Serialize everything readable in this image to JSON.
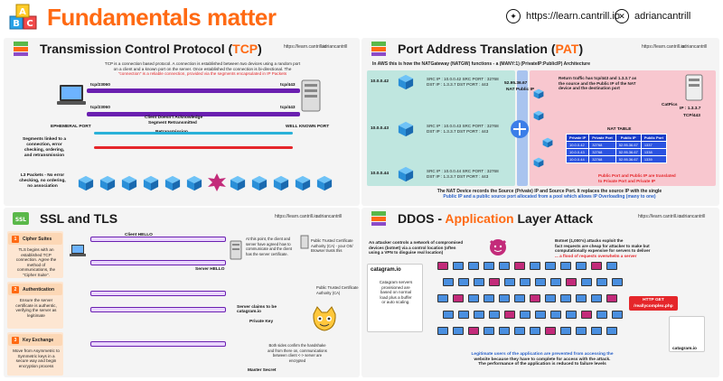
{
  "header": {
    "title": "Fundamentals matter",
    "website": "https://learn.cantrill.io",
    "handle": "adriancantrill",
    "abc": [
      "A",
      "B",
      "C"
    ]
  },
  "tcp": {
    "title_pre": "Transmission Control Protocol (",
    "title_acr": "TCP",
    "title_post": ")",
    "site": "https://learn.cantrill.io",
    "handle": "adriancantrill",
    "desc1": "TCP is a connection based protocol. A connection is established between two devices using a random port",
    "desc2": "on a client and a known port on the server. Once established the connection is bi-directional. The",
    "desc3": "\"connection\" is a reliable connection, provided via the segments encapsulated in IP Packets",
    "port_tcp23060_top": "tcp/23060",
    "port_tcp443_top": "tcp/443",
    "port_tcp23060_bot": "tcp/23060",
    "port_tcp443_bot": "tcp/443",
    "ephemeral": "EPHEMERAL PORT",
    "wellknown": "WELL KNOWN PORT",
    "ack1": "Client Doesn't Acknowledge",
    "ack2": "Segment Retransmitted",
    "retrans": "Retransmission",
    "seg1": "Segments linked to a",
    "seg2": "connection, error",
    "seg3": "checking, ordering,",
    "seg4": "and retransmission",
    "l3_1": "L3 Packets - No error",
    "l3_2": "checking, no ordering,",
    "l3_3": "no association"
  },
  "pat": {
    "title_pre": "Port Address Translation (",
    "title_acr": "PAT",
    "title_post": ")",
    "site": "https://learn.cantrill.io",
    "handle": "adriancantrill",
    "subtitle": "In AWS this is how the NATGateway (NATGW) functions - a (MANY:1) (PrivateIP:PublicIP) Architecture",
    "ip42": "10.0.0.42",
    "ip43": "10.0.0.43",
    "ip44": "10.0.0.44",
    "natip": "52.95.36.67",
    "natlabel": "NAT Public IP",
    "src1": "SRC IP : 10.0.0.42 SRC PORT : 32768",
    "dst1": "DST IP : 1.3.3.7 DST PORT : 443",
    "src2": "SRC IP : 10.0.0.43 SRC PORT : 32768",
    "dst2": "DST IP : 1.3.3.7 DST PORT : 443",
    "src3": "SRC IP : 10.0.0.44 SRC PORT : 32768",
    "dst3": "DST IP : 1.3.3.7 DST PORT : 443",
    "ret1": "Return traffic has tcp/443 and 1.3.3.7 as",
    "ret2": "the source and the Public IP of the NAT",
    "ret3": "device and the destination port",
    "catpics": "CatPics",
    "catip": "IP : 1.3.3.7",
    "catport": "TCP/443",
    "nat_table_title": "NAT TABLE",
    "nat_cols": [
      "Private IP",
      "Private Port",
      "Public IP",
      "Public Port"
    ],
    "nat_rows": [
      [
        "10.0.0.42",
        "32768",
        "52.95.36.67",
        "1337"
      ],
      [
        "10.0.0.43",
        "32768",
        "52.95.36.67",
        "1338"
      ],
      [
        "10.0.0.44",
        "32768",
        "52.95.36.67",
        "1339"
      ]
    ],
    "pp1": "Public Port and Public IP are translated",
    "pp2": "to Private Port and Private IP",
    "foot1": "The NAT Device records the Source (Private) IP and Source Port. It replaces the source IP with the single",
    "foot2": "Public IP and a public source port allocated from a pool which allows IP Overloading (many to one)"
  },
  "ssl": {
    "title": "SSL and TLS",
    "site": "https://learn.cantrill.io",
    "handle": "adriancantrill",
    "steps": [
      "Cipher Suites",
      "Authentication",
      "Key Exchange"
    ],
    "c1": "TLS begins with an established TCP connection. Agree the method of communications, the \"Cipher Suite\".",
    "c2": "Ensure the server certificate is authentic, verifying the server as legitimate",
    "c3": "Move from Asymmetric to Symmetric keys in a secure way and begin encryption process",
    "client_hello": "Client HELLO",
    "server_hello": "Server HELLO",
    "point1": "At this point, the client and server have agreed how to communicate and the client has the server certificate.",
    "ca": "Public Trusted Certificate Authority (CA) - your OS/ Browser trusts this",
    "pubkey": "Public Key",
    "privkey": "Private Key",
    "server_claims": "Server claims to be catagram.io",
    "ca2": "Public Trusted Certificate Authority (CA)",
    "both1": "Both sides confirm the handshake and from there on, communications between client <-> server are encrypted",
    "master": "Master Secret"
  },
  "ddos": {
    "title_pre": "DDOS - ",
    "title_acr": "Application",
    "title_post": " Layer Attack",
    "site": "https://learn.cantrill.io",
    "handle": "adriancantrill",
    "a1": "An attacker controls a network of compromised",
    "a2": "devices (botnet) via a control location (often",
    "a3": "using a VPN to disguise real location)",
    "b1": "Botnet (1,000's) attacks exploit the",
    "b2": "fact requests are cheap for attacker to make but",
    "b3": "computationally expensive for servers to deliver",
    "b4": "... a flood of requests overwhelm a server",
    "site_name": "catagram.io",
    "s1": "Catagram servers",
    "s2": "provisioned are",
    "s3": "based on normal",
    "s4": "load plus a buffer",
    "s5": "or auto scaling.",
    "http": "HTTP GET",
    "http2": "/reallycomplex.php",
    "l1": "Legitimate users of the application are prevented from accessing the",
    "l2": "website because they have to complete for access with the attack.",
    "l3": "The performance of the application is reduced to failure levels",
    "site_label": "catagram.io"
  },
  "colors": {
    "orange": "#ff6a13",
    "red": "#e5262a",
    "blue": "#2a62c9",
    "teal": "#bfe6df",
    "pink": "#f8c7cf"
  }
}
